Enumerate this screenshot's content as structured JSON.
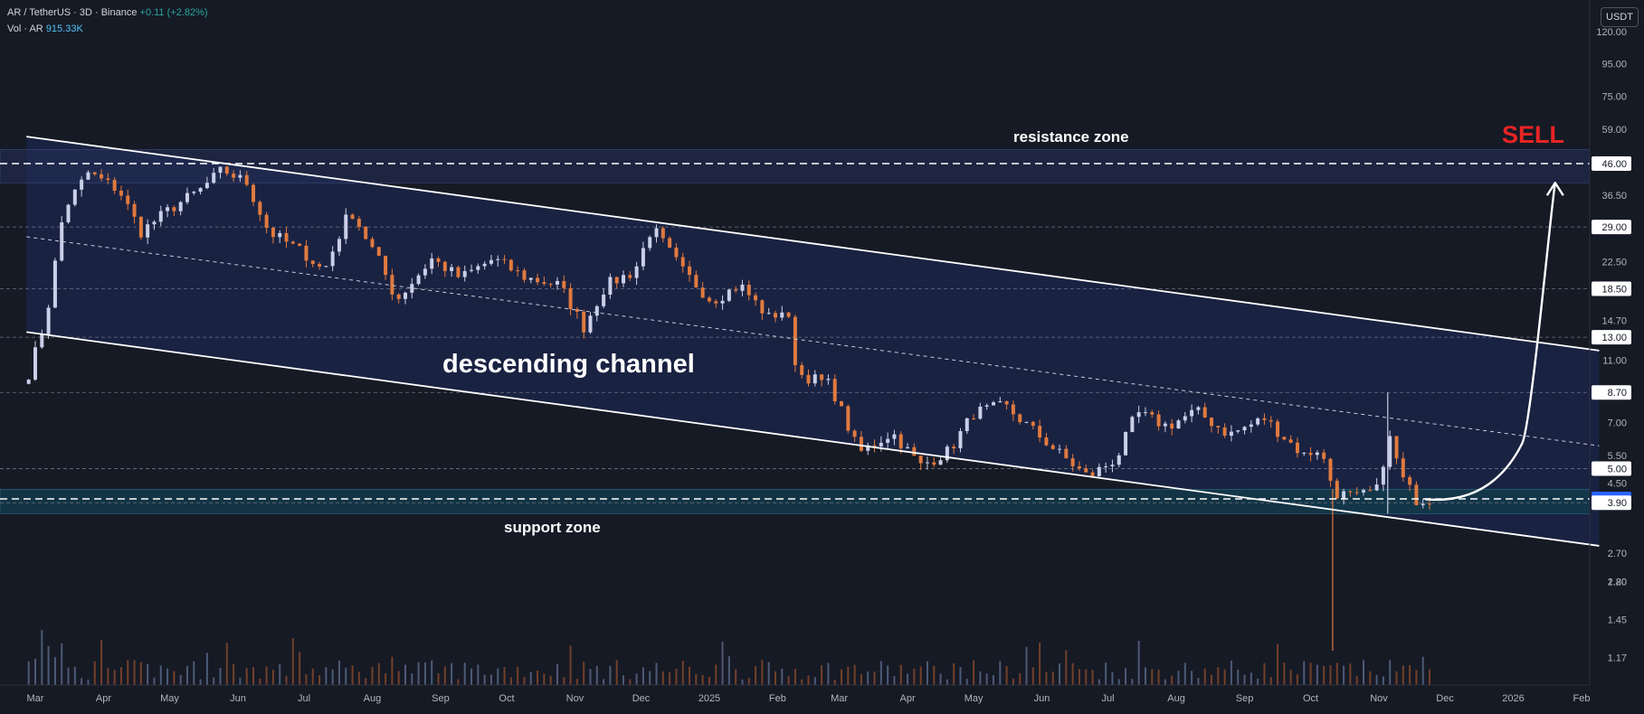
{
  "header": {
    "symbol_line": "AR / TetherUS · 3D · Binance",
    "change": "+0.11 (+2.82%)",
    "vol_label": "Vol · AR",
    "vol_value": "915.33K"
  },
  "currency_button": "USDT",
  "colors": {
    "background": "#161a25",
    "channel_fill": "#1b2446",
    "support_fill": "#133a4a",
    "bull": "#c9cfe8",
    "bear": "#e07a3f",
    "sell": "#e82424",
    "line": "#ffffff",
    "grid": "#3a3e4a"
  },
  "chart_data": {
    "type": "candlestick",
    "scale": "log",
    "y_ticks": [
      "120.00",
      "95.00",
      "75.00",
      "59.00",
      "46.00",
      "36.50",
      "29.00",
      "22.50",
      "18.50",
      "14.70",
      "13.00",
      "11.00",
      "8.70",
      "7.00",
      "5.50",
      "5.00",
      "4.50",
      "4.01",
      "3.90",
      "2.70",
      "2.20",
      "1.80",
      "1.45",
      "1.17"
    ],
    "y_tick_values": [
      120,
      95,
      75,
      59,
      46,
      36.5,
      29,
      22.5,
      18.5,
      14.7,
      13,
      11,
      8.7,
      7,
      5.5,
      5,
      4.5,
      4.01,
      3.9,
      2.7,
      2.2,
      1.8,
      1.45,
      1.17
    ],
    "highlighted_levels": [
      "46.00",
      "29.00",
      "18.50",
      "13.00",
      "8.70",
      "5.00",
      "4.01",
      "3.90"
    ],
    "current_price": "4.01",
    "x_labels": [
      "Mar",
      "Apr",
      "May",
      "Jun",
      "Jul",
      "Aug",
      "Sep",
      "Oct",
      "Nov",
      "Dec",
      "2025",
      "Feb",
      "Mar",
      "Apr",
      "May",
      "Jun",
      "Jul",
      "Aug",
      "Sep",
      "Oct",
      "Nov",
      "Dec",
      "2026",
      "Feb"
    ],
    "x_start": "2024-02-28",
    "x_end": "2026-02-28",
    "support_zone": [
      3.6,
      4.3
    ],
    "resistance_zone": [
      40,
      51
    ],
    "dashed_levels": [
      46,
      4.01
    ],
    "channel_upper": [
      {
        "x": "2024-02-26",
        "y": 56
      },
      {
        "x": "2026-02-09",
        "y": 11.8
      }
    ],
    "channel_lower": [
      {
        "x": "2024-02-26",
        "y": 13.5
      },
      {
        "x": "2026-02-09",
        "y": 2.85
      }
    ],
    "channel_mid": [
      {
        "x": "2024-02-26",
        "y": 27
      },
      {
        "x": "2026-02-09",
        "y": 5.9
      }
    ],
    "projection": [
      {
        "x": "2025-11-22",
        "y": 4.0
      },
      {
        "x": "2026-01-05",
        "y": 6.0
      },
      {
        "x": "2026-01-20",
        "y": 40
      }
    ],
    "anchors": [
      [
        "2024-02-27",
        10
      ],
      [
        "2024-03-06",
        15
      ],
      [
        "2024-03-14",
        33
      ],
      [
        "2024-03-25",
        43
      ],
      [
        "2024-04-08",
        38
      ],
      [
        "2024-04-18",
        28
      ],
      [
        "2024-05-01",
        33
      ],
      [
        "2024-05-15",
        38
      ],
      [
        "2024-05-25",
        44
      ],
      [
        "2024-06-05",
        40
      ],
      [
        "2024-06-15",
        28
      ],
      [
        "2024-07-01",
        24
      ],
      [
        "2024-07-10",
        21
      ],
      [
        "2024-07-22",
        33
      ],
      [
        "2024-08-05",
        22
      ],
      [
        "2024-08-12",
        17
      ],
      [
        "2024-08-28",
        23
      ],
      [
        "2024-09-10",
        20
      ],
      [
        "2024-09-25",
        23
      ],
      [
        "2024-10-10",
        20
      ],
      [
        "2024-10-25",
        19
      ],
      [
        "2024-11-05",
        14
      ],
      [
        "2024-11-15",
        19
      ],
      [
        "2024-11-28",
        21
      ],
      [
        "2024-12-06",
        29
      ],
      [
        "2024-12-20",
        21
      ],
      [
        "2025-01-02",
        17
      ],
      [
        "2025-01-15",
        19
      ],
      [
        "2025-01-28",
        15
      ],
      [
        "2025-02-05",
        16
      ],
      [
        "2025-02-10",
        10
      ],
      [
        "2025-02-25",
        9.2
      ],
      [
        "2025-03-10",
        5.6
      ],
      [
        "2025-03-25",
        6.5
      ],
      [
        "2025-04-07",
        5.1
      ],
      [
        "2025-04-20",
        5.7
      ],
      [
        "2025-05-01",
        7.5
      ],
      [
        "2025-05-15",
        7.9
      ],
      [
        "2025-05-28",
        6.6
      ],
      [
        "2025-06-10",
        5.5
      ],
      [
        "2025-06-22",
        4.7
      ],
      [
        "2025-07-05",
        5.4
      ],
      [
        "2025-07-14",
        7.5
      ],
      [
        "2025-07-28",
        6.8
      ],
      [
        "2025-08-10",
        7.6
      ],
      [
        "2025-08-25",
        6.4
      ],
      [
        "2025-09-10",
        7.2
      ],
      [
        "2025-09-28",
        5.5
      ],
      [
        "2025-10-05",
        5.8
      ],
      [
        "2025-10-12",
        4.2
      ],
      [
        "2025-10-22",
        4.05
      ],
      [
        "2025-11-01",
        4.3
      ],
      [
        "2025-11-05",
        6.5
      ],
      [
        "2025-11-12",
        4.6
      ],
      [
        "2025-11-18",
        4.0
      ],
      [
        "2025-11-24",
        4.01
      ]
    ],
    "annotations": {
      "channel": "descending channel",
      "resistance": "resistance zone",
      "support": "support zone",
      "signal": "SELL"
    }
  }
}
